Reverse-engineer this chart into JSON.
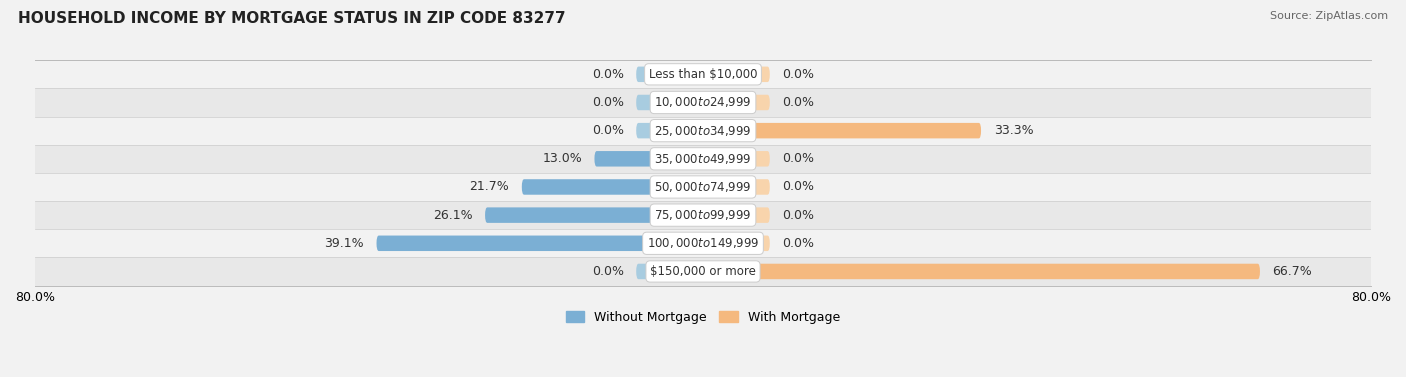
{
  "title": "HOUSEHOLD INCOME BY MORTGAGE STATUS IN ZIP CODE 83277",
  "source": "Source: ZipAtlas.com",
  "categories": [
    "Less than $10,000",
    "$10,000 to $24,999",
    "$25,000 to $34,999",
    "$35,000 to $49,999",
    "$50,000 to $74,999",
    "$75,000 to $99,999",
    "$100,000 to $149,999",
    "$150,000 or more"
  ],
  "without_mortgage": [
    0.0,
    0.0,
    0.0,
    13.0,
    21.7,
    26.1,
    39.1,
    0.0
  ],
  "with_mortgage": [
    0.0,
    0.0,
    33.3,
    0.0,
    0.0,
    0.0,
    0.0,
    66.7
  ],
  "color_without": "#7bafd4",
  "color_with": "#f5b97f",
  "color_without_stub": "#a8cce0",
  "color_with_stub": "#f8d4ac",
  "bg_outer": "#f2f2f2",
  "bg_row_light": "#f2f2f2",
  "bg_row_dark": "#e8e8e8",
  "xlim_left": -80.0,
  "xlim_right": 80.0,
  "stub_size": 8.0,
  "title_fontsize": 11,
  "source_fontsize": 8,
  "label_fontsize": 9,
  "category_fontsize": 8.5
}
